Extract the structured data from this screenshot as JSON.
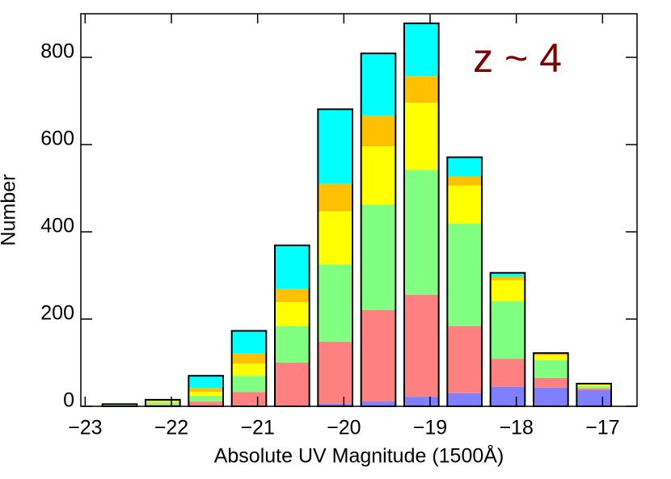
{
  "chart_data": {
    "type": "bar",
    "stacked": true,
    "xlabel": "Absolute UV Magnitude (1500Å)",
    "ylabel": "Number",
    "annotation": "z ~ 4",
    "x": [
      -22.6,
      -22.1,
      -21.6,
      -21.1,
      -20.6,
      -20.1,
      -19.6,
      -19.1,
      -18.6,
      -18.1,
      -17.6,
      -17.1
    ],
    "series": [
      {
        "color": "#8080ff",
        "values": [
          0,
          0,
          1,
          2,
          2,
          6,
          11,
          22,
          30,
          45,
          43,
          37
        ]
      },
      {
        "color": "#ff8080",
        "values": [
          1,
          4,
          10,
          31,
          98,
          142,
          210,
          234,
          154,
          64,
          22,
          4
        ]
      },
      {
        "color": "#80ff80",
        "values": [
          2,
          6,
          13,
          37,
          84,
          177,
          241,
          286,
          235,
          132,
          41,
          5
        ]
      },
      {
        "color": "#ffff00",
        "values": [
          1,
          2,
          9,
          28,
          55,
          122,
          134,
          154,
          87,
          48,
          11,
          4
        ]
      },
      {
        "color": "#ffc000",
        "values": [
          0,
          1,
          9,
          23,
          30,
          63,
          70,
          61,
          21,
          8,
          4,
          1
        ]
      },
      {
        "color": "#00ffff",
        "values": [
          1,
          2,
          28,
          52,
          100,
          171,
          143,
          121,
          44,
          9,
          1,
          1
        ]
      }
    ],
    "xlim": [
      -23.05,
      -16.6
    ],
    "xticks": [
      {
        "value": -23,
        "label": "−23"
      },
      {
        "value": -22,
        "label": "−22"
      },
      {
        "value": -21,
        "label": "−21"
      },
      {
        "value": -20,
        "label": "−20"
      },
      {
        "value": -19,
        "label": "−19"
      },
      {
        "value": -18,
        "label": "−18"
      },
      {
        "value": -17,
        "label": "−17"
      }
    ],
    "ylim": [
      0,
      900
    ],
    "yticks": [
      0,
      200,
      400,
      600,
      800
    ]
  }
}
